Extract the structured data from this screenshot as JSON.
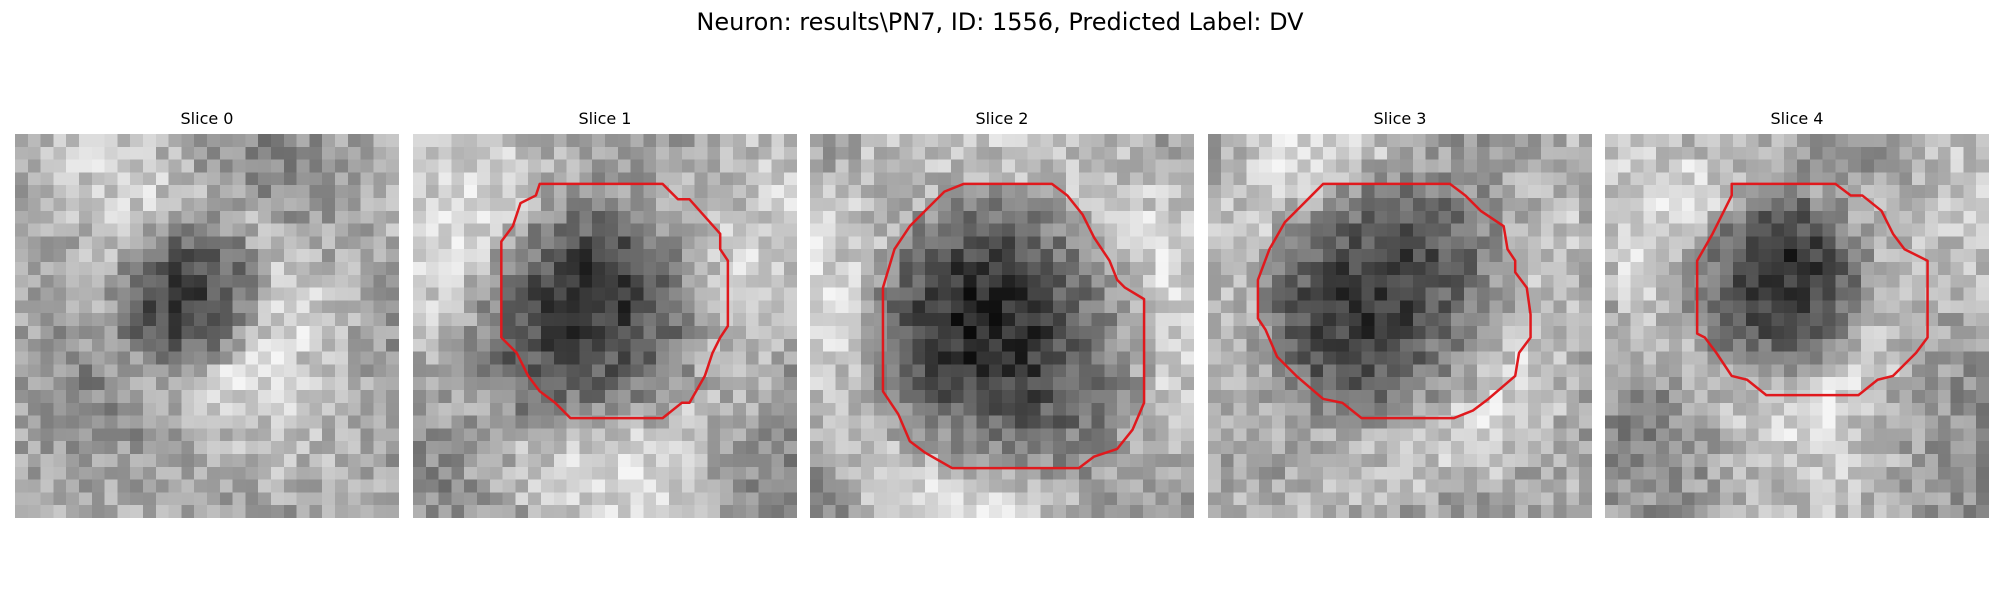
{
  "figure": {
    "title": "Neuron: results\\PN7, ID: 1556, Predicted Label: DV"
  },
  "slices": [
    {
      "title": "Slice 0",
      "image": "grayscale microscopy patch; diffuse dark blob slightly left of center, bright patches lower-left",
      "dark_center": [
        0.46,
        0.42
      ],
      "dark_radius": 0.18,
      "contour": []
    },
    {
      "title": "Slice 1",
      "image": "grayscale microscopy patch; dark roughly round cell body, bright surround at left and bottom",
      "dark_center": [
        0.45,
        0.5
      ],
      "dark_radius": 0.28,
      "contour": [
        [
          0.33,
          0.13
        ],
        [
          0.65,
          0.13
        ],
        [
          0.69,
          0.17
        ],
        [
          0.72,
          0.17
        ],
        [
          0.8,
          0.26
        ],
        [
          0.8,
          0.3
        ],
        [
          0.82,
          0.33
        ],
        [
          0.82,
          0.5
        ],
        [
          0.8,
          0.53
        ],
        [
          0.78,
          0.57
        ],
        [
          0.76,
          0.63
        ],
        [
          0.72,
          0.7
        ],
        [
          0.7,
          0.7
        ],
        [
          0.65,
          0.74
        ],
        [
          0.41,
          0.74
        ],
        [
          0.37,
          0.7
        ],
        [
          0.33,
          0.67
        ],
        [
          0.3,
          0.63
        ],
        [
          0.27,
          0.57
        ],
        [
          0.23,
          0.53
        ],
        [
          0.23,
          0.28
        ],
        [
          0.26,
          0.24
        ],
        [
          0.28,
          0.18
        ],
        [
          0.32,
          0.16
        ]
      ]
    },
    {
      "title": "Slice 2",
      "image": "grayscale microscopy patch; large dark textured cell body filling most of the frame",
      "dark_center": [
        0.52,
        0.53
      ],
      "dark_radius": 0.34,
      "contour": [
        [
          0.4,
          0.13
        ],
        [
          0.63,
          0.13
        ],
        [
          0.67,
          0.16
        ],
        [
          0.71,
          0.21
        ],
        [
          0.74,
          0.27
        ],
        [
          0.78,
          0.33
        ],
        [
          0.8,
          0.38
        ],
        [
          0.82,
          0.4
        ],
        [
          0.87,
          0.43
        ],
        [
          0.87,
          0.7
        ],
        [
          0.84,
          0.77
        ],
        [
          0.8,
          0.82
        ],
        [
          0.74,
          0.84
        ],
        [
          0.7,
          0.87
        ],
        [
          0.37,
          0.87
        ],
        [
          0.3,
          0.83
        ],
        [
          0.26,
          0.8
        ],
        [
          0.23,
          0.73
        ],
        [
          0.19,
          0.67
        ],
        [
          0.19,
          0.4
        ],
        [
          0.22,
          0.3
        ],
        [
          0.26,
          0.24
        ],
        [
          0.3,
          0.2
        ],
        [
          0.35,
          0.15
        ]
      ]
    },
    {
      "title": "Slice 3",
      "image": "grayscale microscopy patch; dark cell body with bright surround at top-right and bottom",
      "dark_center": [
        0.48,
        0.42
      ],
      "dark_radius": 0.3,
      "contour": [
        [
          0.3,
          0.13
        ],
        [
          0.63,
          0.13
        ],
        [
          0.67,
          0.16
        ],
        [
          0.71,
          0.2
        ],
        [
          0.77,
          0.24
        ],
        [
          0.78,
          0.3
        ],
        [
          0.8,
          0.33
        ],
        [
          0.8,
          0.36
        ],
        [
          0.83,
          0.4
        ],
        [
          0.84,
          0.47
        ],
        [
          0.84,
          0.53
        ],
        [
          0.81,
          0.57
        ],
        [
          0.8,
          0.63
        ],
        [
          0.73,
          0.69
        ],
        [
          0.69,
          0.72
        ],
        [
          0.64,
          0.74
        ],
        [
          0.4,
          0.74
        ],
        [
          0.35,
          0.7
        ],
        [
          0.3,
          0.69
        ],
        [
          0.23,
          0.63
        ],
        [
          0.18,
          0.58
        ],
        [
          0.15,
          0.51
        ],
        [
          0.13,
          0.48
        ],
        [
          0.13,
          0.38
        ],
        [
          0.16,
          0.3
        ],
        [
          0.2,
          0.23
        ],
        [
          0.24,
          0.19
        ],
        [
          0.27,
          0.16
        ]
      ]
    },
    {
      "title": "Slice 4",
      "image": "grayscale microscopy patch; compact dark cell body with bright halo around it",
      "dark_center": [
        0.44,
        0.4
      ],
      "dark_radius": 0.22,
      "contour": [
        [
          0.33,
          0.13
        ],
        [
          0.6,
          0.13
        ],
        [
          0.64,
          0.16
        ],
        [
          0.67,
          0.16
        ],
        [
          0.72,
          0.2
        ],
        [
          0.75,
          0.26
        ],
        [
          0.78,
          0.3
        ],
        [
          0.84,
          0.33
        ],
        [
          0.84,
          0.53
        ],
        [
          0.81,
          0.57
        ],
        [
          0.75,
          0.63
        ],
        [
          0.71,
          0.64
        ],
        [
          0.66,
          0.68
        ],
        [
          0.42,
          0.68
        ],
        [
          0.37,
          0.64
        ],
        [
          0.33,
          0.63
        ],
        [
          0.29,
          0.57
        ],
        [
          0.26,
          0.53
        ],
        [
          0.24,
          0.52
        ],
        [
          0.24,
          0.33
        ],
        [
          0.28,
          0.26
        ],
        [
          0.31,
          0.2
        ],
        [
          0.33,
          0.16
        ]
      ]
    }
  ],
  "colors": {
    "contour": "#e0191d",
    "background": "#ffffff"
  }
}
